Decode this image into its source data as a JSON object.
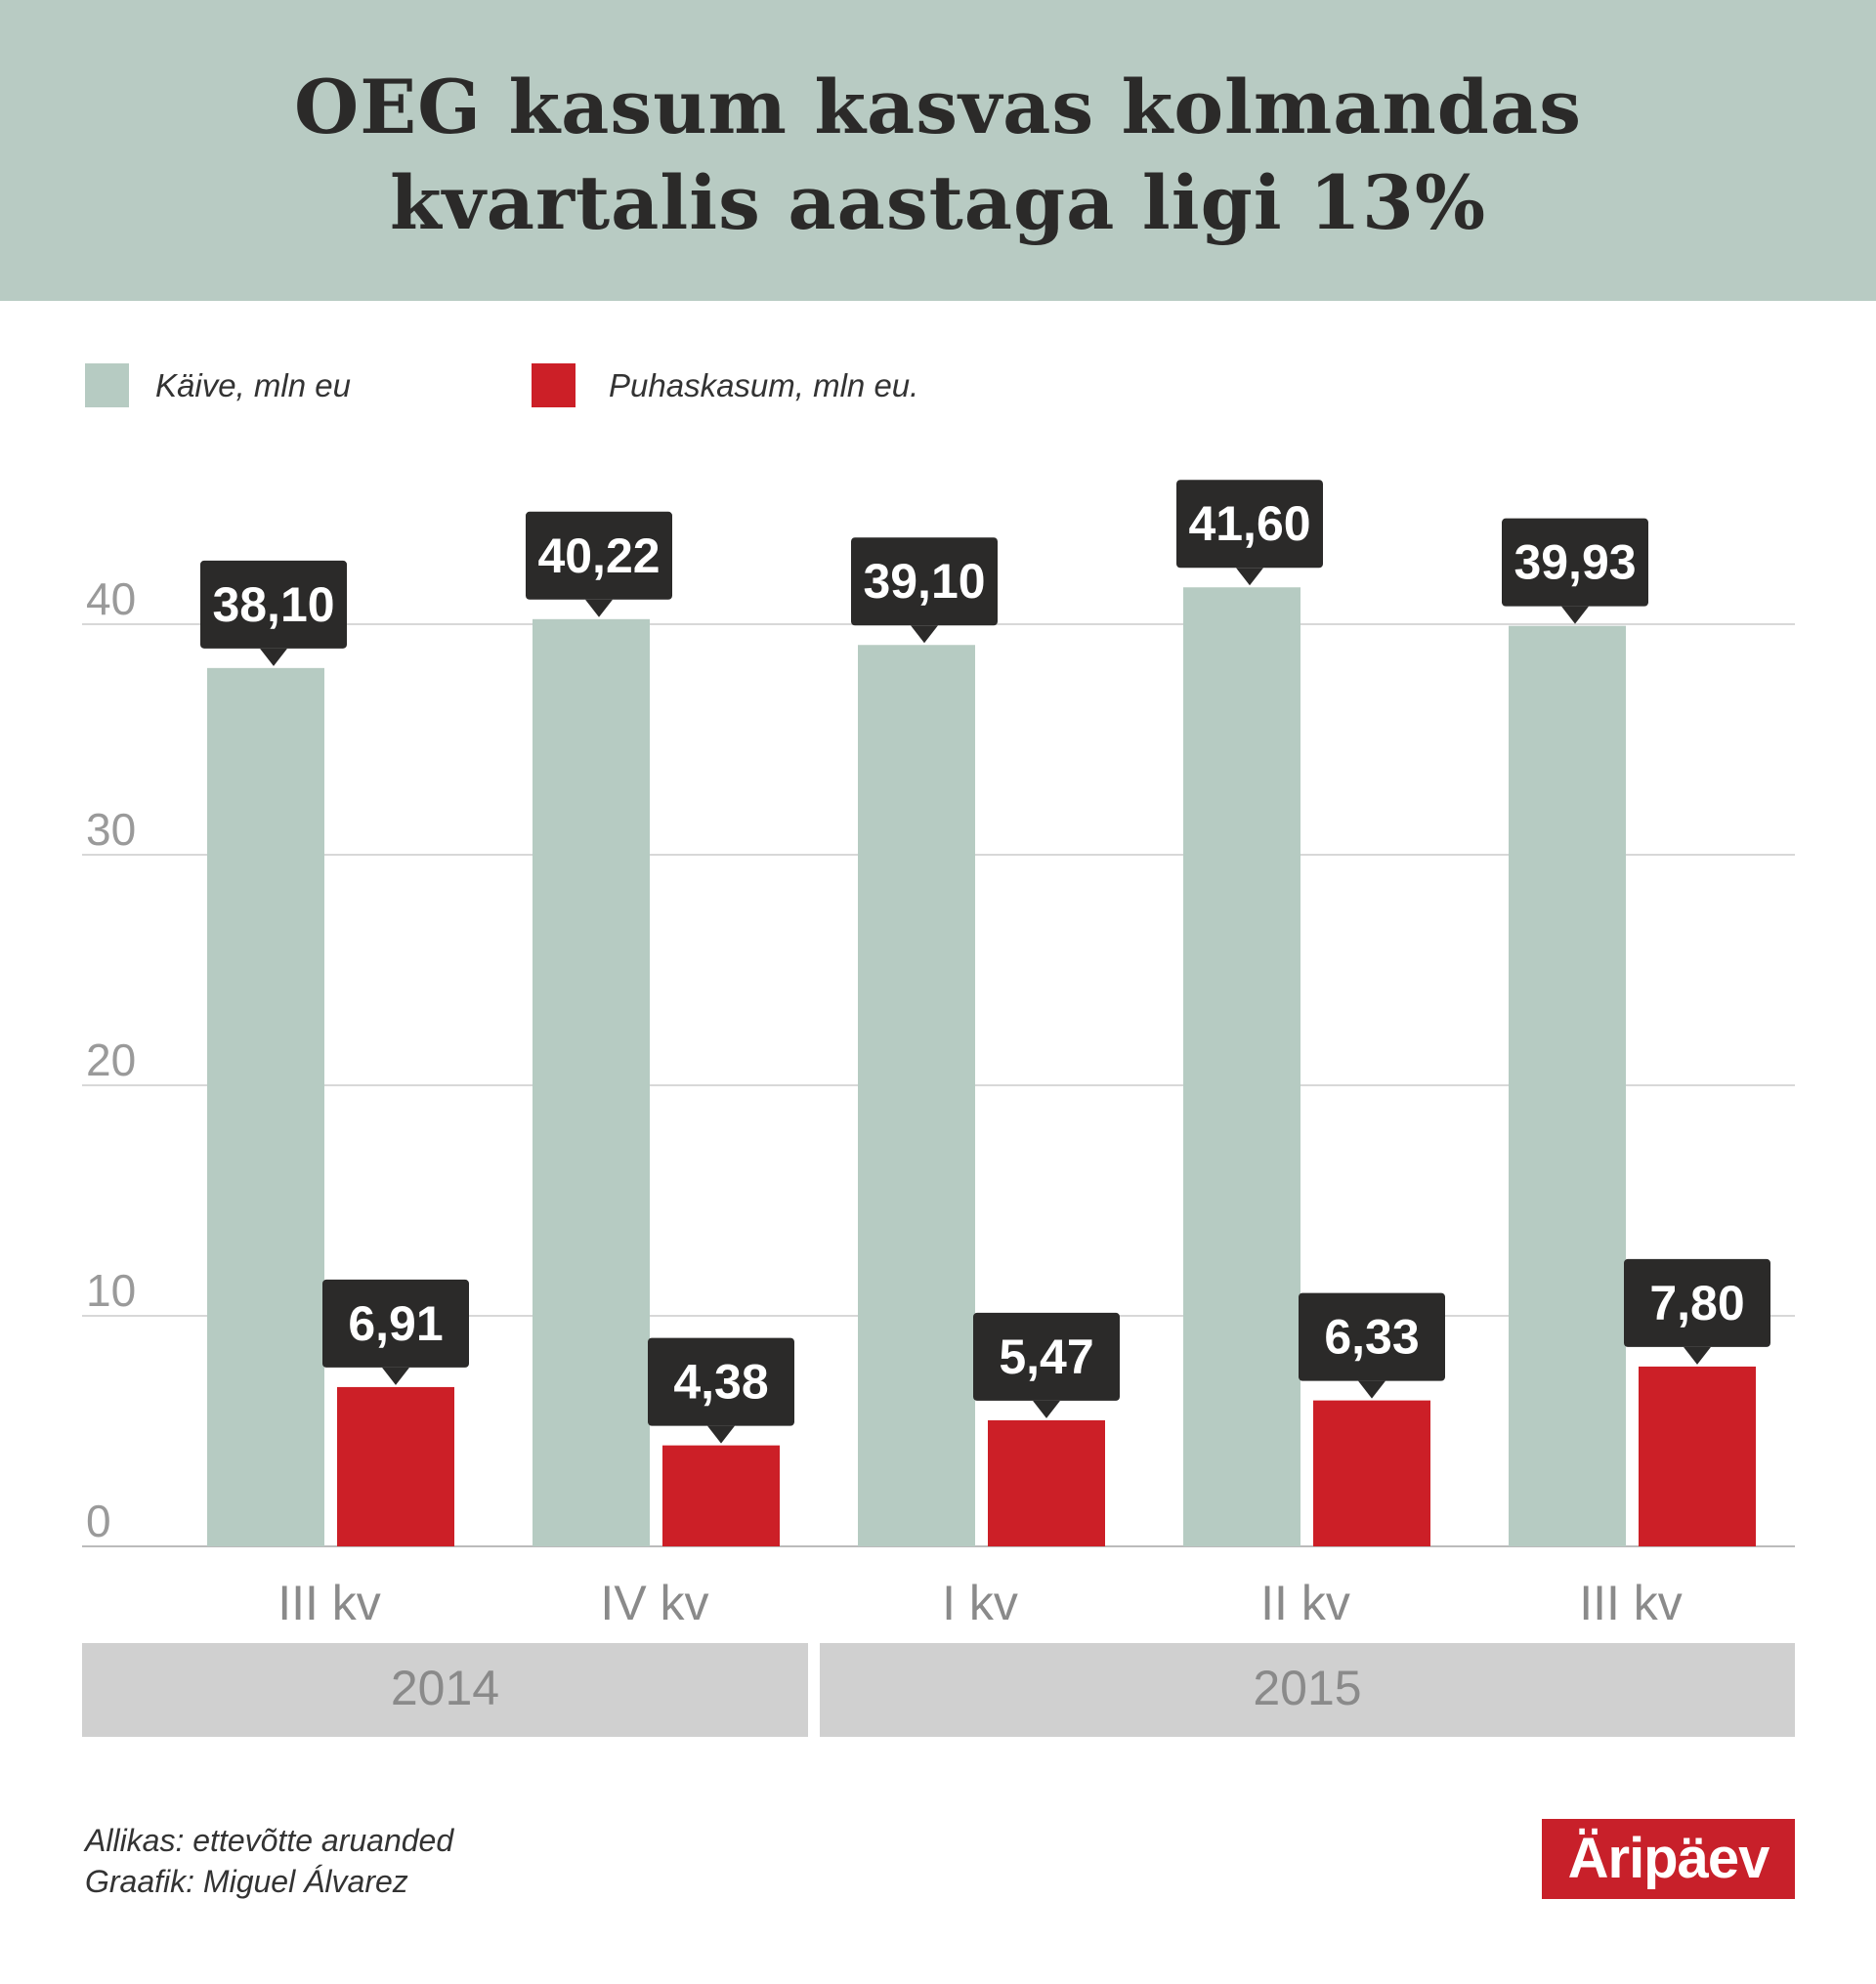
{
  "title_lines": [
    "OEG kasum kasvas kolmandas",
    "kvartalis aastaga ligi 13%"
  ],
  "colors": {
    "header": "#b8cbc3",
    "kaive": "#b6cbc2",
    "puhaskasum": "#cc1f27",
    "callout": "#2b2a29",
    "year_band": "#d0d0d0"
  },
  "chart_data": {
    "type": "bar",
    "title": "OEG kasum kasvas kolmandas kvartalis aastaga ligi 13%",
    "categories": [
      "III kv",
      "IV kv",
      "I kv",
      "II kv",
      "III kv"
    ],
    "groups": [
      {
        "label": "2014",
        "categories": 2
      },
      {
        "label": "2015",
        "categories": 3
      }
    ],
    "series": [
      {
        "name": "Käive, mln eu",
        "values": [
          38.1,
          40.22,
          39.1,
          41.6,
          39.93
        ],
        "labels": [
          "38,10",
          "40,22",
          "39,10",
          "41,60",
          "39,93"
        ]
      },
      {
        "name": "Puhaskasum, mln eu.",
        "values": [
          6.91,
          4.38,
          5.47,
          6.33,
          7.8
        ],
        "labels": [
          "6,91",
          "4,38",
          "5,47",
          "6,33",
          "7,80"
        ]
      }
    ],
    "yticks": [
      0,
      10,
      20,
      30,
      40
    ],
    "ylim": [
      0,
      40
    ],
    "grid": true,
    "legend": "top-left"
  },
  "footer": {
    "source": "Allikas:  ettevõtte aruanded",
    "graphic": "Graafik:  Miguel  Álvarez"
  },
  "logo": "Äripäev"
}
